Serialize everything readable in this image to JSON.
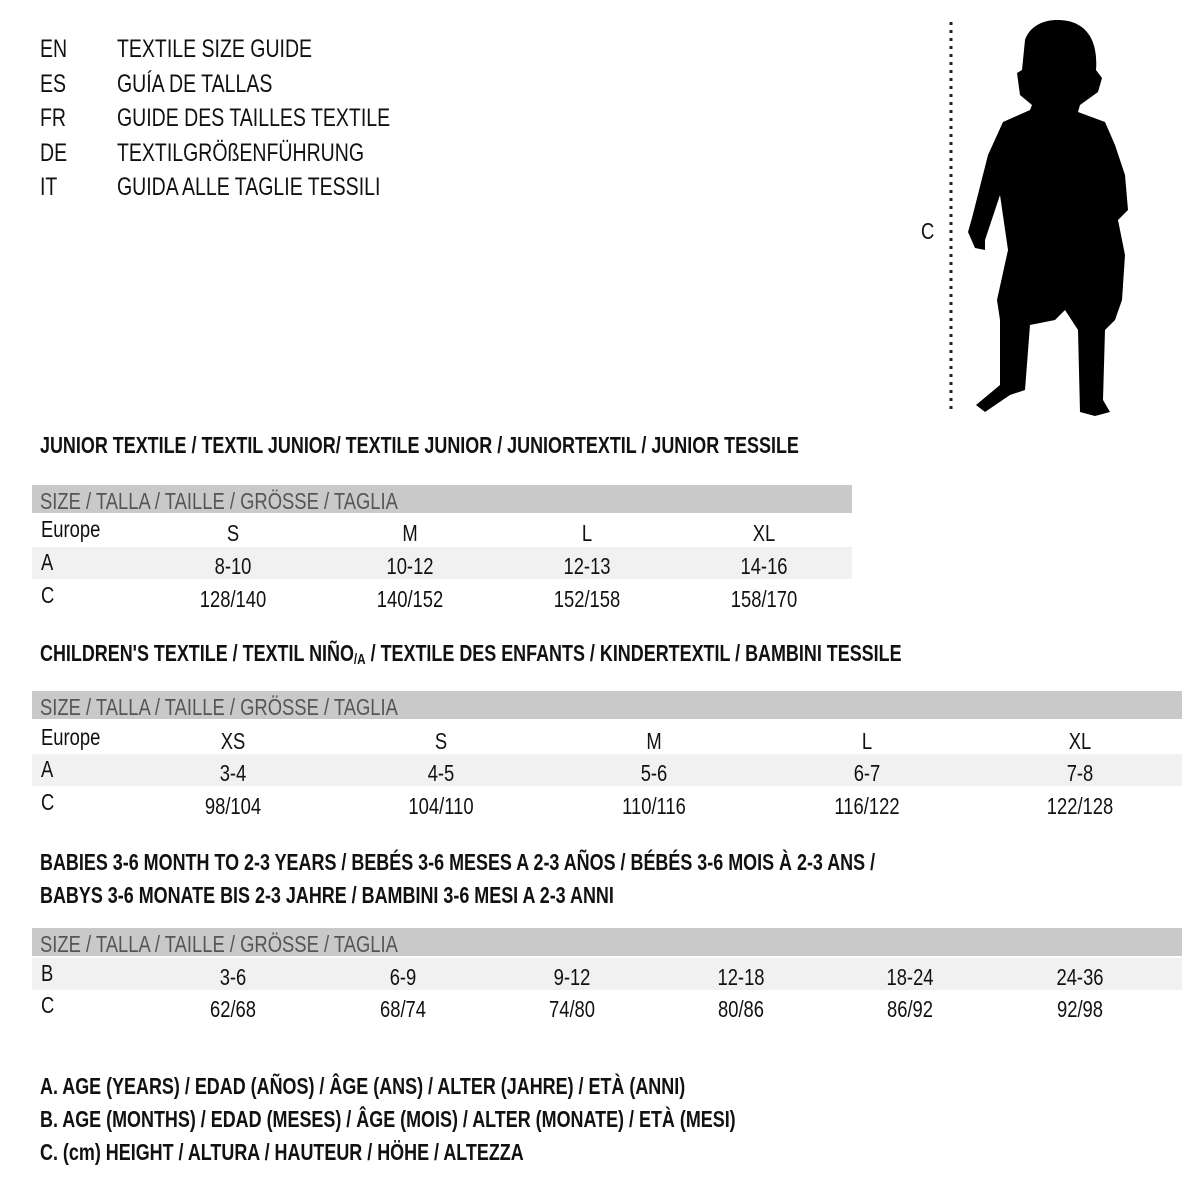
{
  "title_lines": [
    {
      "code": "EN",
      "text": "TEXTILE SIZE GUIDE"
    },
    {
      "code": "ES",
      "text": "GUÍA DE TALLAS"
    },
    {
      "code": "FR",
      "text": "GUIDE DES TAILLES TEXTILE"
    },
    {
      "code": "DE",
      "text": "TEXTILGRÖßENFÜHRUNG"
    },
    {
      "code": "IT",
      "text": "GUIDA ALLE TAGLIE TESSILI"
    }
  ],
  "figure": {
    "measure_label": "C",
    "icon": "child-silhouette"
  },
  "junior": {
    "heading": "JUNIOR TEXTILE / TEXTIL JUNIOR/ TEXTILE JUNIOR / JUNIORTEXTIL / JUNIOR TESSILE",
    "header": "SIZE / TALLA / TAILLE / GRÖSSE / TAGLIA",
    "rows": [
      {
        "label": "Europe",
        "values": [
          "S",
          "M",
          "L",
          "XL"
        ]
      },
      {
        "label": "A",
        "values": [
          "8-10",
          "10-12",
          "12-13",
          "14-16"
        ]
      },
      {
        "label": "C",
        "values": [
          "128/140",
          "140/152",
          "152/158",
          "158/170"
        ]
      }
    ]
  },
  "children": {
    "heading_pre": "CHILDREN'S TEXTILE / TEXTIL NIÑO",
    "heading_sub": "/A",
    "heading_post": " / TEXTILE DES ENFANTS / KINDERTEXTIL / BAMBINI TESSILE",
    "header": "SIZE / TALLA / TAILLE / GRÖSSE / TAGLIA",
    "rows": [
      {
        "label": "Europe",
        "values": [
          "XS",
          "S",
          "M",
          "L",
          "XL"
        ]
      },
      {
        "label": "A",
        "values": [
          "3-4",
          "4-5",
          "5-6",
          "6-7",
          "7-8"
        ]
      },
      {
        "label": "C",
        "values": [
          "98/104",
          "104/110",
          "110/116",
          "116/122",
          "122/128"
        ]
      }
    ]
  },
  "babies": {
    "heading_line1": "BABIES 3-6 MONTH TO 2-3 YEARS / BEBÉS 3-6 MESES A 2-3 AÑOS / BÉBÉS 3-6 MOIS À 2-3 ANS /",
    "heading_line2": "BABYS 3-6 MONATE BIS 2-3 JAHRE / BAMBINI 3-6 MESI A 2-3 ANNI",
    "header": "SIZE / TALLA / TAILLE / GRÖSSE / TAGLIA",
    "rows": [
      {
        "label": "B",
        "values": [
          "3-6",
          "6-9",
          "9-12",
          "12-18",
          "18-24",
          "24-36"
        ]
      },
      {
        "label": "C",
        "values": [
          "62/68",
          "68/74",
          "74/80",
          "80/86",
          "86/92",
          "92/98"
        ]
      }
    ]
  },
  "legend": [
    "A. AGE (YEARS) / EDAD (AÑOS) / ÂGE (ANS) / ALTER (JAHRE) / ETÀ (ANNI)",
    "B. AGE (MONTHS) / EDAD (MESES) / ÂGE (MOIS) / ALTER (MONATE) / ETÀ (MESI)",
    "C. (cm) HEIGHT / ALTURA / HAUTEUR / HÖHE / ALTEZZA"
  ],
  "colors": {
    "header_bar": "#c9c9c9",
    "row_band": "#f1f1f1"
  }
}
